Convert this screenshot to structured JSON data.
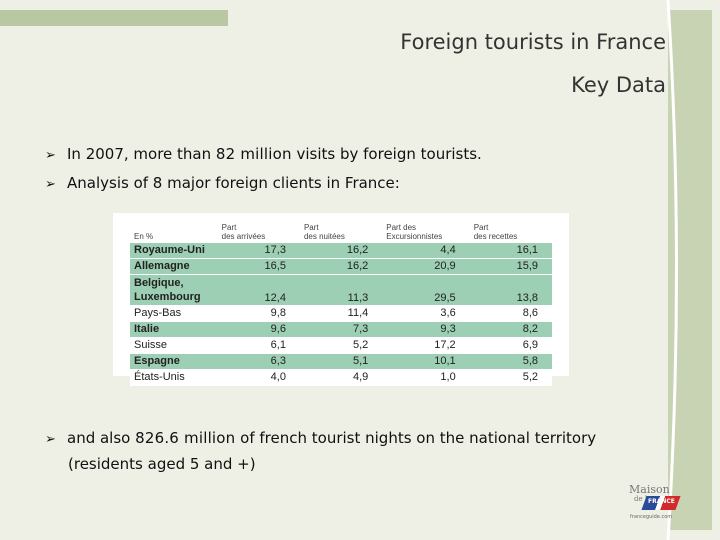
{
  "slide": {
    "title_line1": "Foreign tourists in France",
    "title_line2": "Key Data",
    "bullets": {
      "b1_pre": "In 2007, more than ",
      "b1_bold": "82 million",
      "b1_post": " visits by foreign tourists.",
      "b2": "Analysis of 8 major foreign clients in France:",
      "b3_pre": "and also ",
      "b3_bold": "826.6 million",
      "b3_post": " of french tourist nights on the national territory",
      "b3_cont": "(residents aged 5 and +)"
    },
    "bullet_icon": "arrow-bullet-icon"
  },
  "table": {
    "headers": [
      {
        "l1": "En %",
        "l2": ""
      },
      {
        "l1": "Part",
        "l2": "des arrivées"
      },
      {
        "l1": "Part",
        "l2": "des nuitées"
      },
      {
        "l1": "Part des",
        "l2": "Excursionnistes"
      },
      {
        "l1": "Part",
        "l2": "des recettes"
      }
    ],
    "rows": [
      {
        "country": "Royaume-Uni",
        "c2": "",
        "v": [
          "17,3",
          "16,2",
          "4,4",
          "16,1"
        ]
      },
      {
        "country": "Allemagne",
        "c2": "",
        "v": [
          "16,5",
          "16,2",
          "20,9",
          "15,9"
        ]
      },
      {
        "country": "Belgique,",
        "c2": "Luxembourg",
        "v": [
          "12,4",
          "11,3",
          "29,5",
          "13,8"
        ]
      },
      {
        "country": "Pays-Bas",
        "c2": "",
        "v": [
          "9,8",
          "11,4",
          "3,6",
          "8,6"
        ]
      },
      {
        "country": "Italie",
        "c2": "",
        "v": [
          "9,6",
          "7,3",
          "9,3",
          "8,2"
        ]
      },
      {
        "country": "Suisse",
        "c2": "",
        "v": [
          "6,1",
          "5,2",
          "17,2",
          "6,9"
        ]
      },
      {
        "country": "Espagne",
        "c2": "",
        "v": [
          "6,3",
          "5,1",
          "10,1",
          "5,8"
        ]
      },
      {
        "country": "États-Unis",
        "c2": "",
        "v": [
          "4,0",
          "4,9",
          "1,0",
          "5,2"
        ]
      }
    ]
  },
  "logo": {
    "line1": "Maison",
    "line2": "de la",
    "brand": "FRANCE",
    "site": "franceguide.com"
  },
  "colors": {
    "row_green": "#9ccfb3",
    "background": "#eef0e6",
    "accent_bar": "#b9c7a2"
  }
}
